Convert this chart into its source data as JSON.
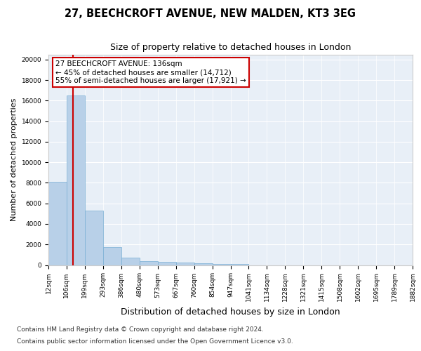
{
  "title1": "27, BEECHCROFT AVENUE, NEW MALDEN, KT3 3EG",
  "title2": "Size of property relative to detached houses in London",
  "xlabel": "Distribution of detached houses by size in London",
  "ylabel": "Number of detached properties",
  "bin_labels": [
    "12sqm",
    "106sqm",
    "199sqm",
    "293sqm",
    "386sqm",
    "480sqm",
    "573sqm",
    "667sqm",
    "760sqm",
    "854sqm",
    "947sqm",
    "1041sqm",
    "1134sqm",
    "1228sqm",
    "1321sqm",
    "1415sqm",
    "1508sqm",
    "1602sqm",
    "1695sqm",
    "1789sqm",
    "1882sqm"
  ],
  "bar_heights": [
    8100,
    16500,
    5300,
    1750,
    700,
    380,
    290,
    220,
    180,
    130,
    80,
    0,
    0,
    0,
    0,
    0,
    0,
    0,
    0,
    0
  ],
  "bar_color": "#b8d0e8",
  "bar_edge_color": "#7aafd4",
  "property_bin_index": 1.35,
  "property_line_color": "#cc0000",
  "annotation_line1": "27 BEECHCROFT AVENUE: 136sqm",
  "annotation_line2": "← 45% of detached houses are smaller (14,712)",
  "annotation_line3": "55% of semi-detached houses are larger (17,921) →",
  "annotation_box_color": "#cc0000",
  "ylim": [
    0,
    20500
  ],
  "yticks": [
    0,
    2000,
    4000,
    6000,
    8000,
    10000,
    12000,
    14000,
    16000,
    18000,
    20000
  ],
  "bg_color": "#e8eff7",
  "grid_color": "#ffffff",
  "footer1": "Contains HM Land Registry data © Crown copyright and database right 2024.",
  "footer2": "Contains public sector information licensed under the Open Government Licence v3.0.",
  "title1_fontsize": 10.5,
  "title2_fontsize": 9,
  "ylabel_fontsize": 8,
  "xlabel_fontsize": 9,
  "tick_fontsize": 6.5,
  "footer_fontsize": 6.5,
  "annotation_fontsize": 7.5
}
